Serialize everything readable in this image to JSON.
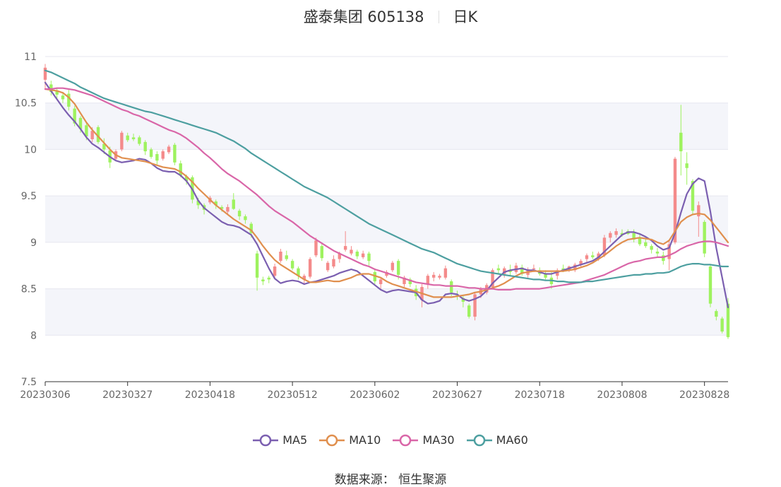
{
  "title": {
    "name": "盛泰集团 605138",
    "period": "日K"
  },
  "source": {
    "label": "数据来源：",
    "value": "恒生聚源"
  },
  "colors": {
    "up": "#f48b8b",
    "down": "#9ef25f",
    "MA5": "#7b5fb0",
    "MA10": "#e08f4e",
    "MA30": "#d966a8",
    "MA60": "#4d9fa0",
    "grid": "#e6e6ef",
    "band": "#f4f5fa"
  },
  "chart_data": {
    "type": "candlestick",
    "ylim": [
      7.5,
      11
    ],
    "yticks": [
      7.5,
      8,
      8.5,
      9,
      9.5,
      10,
      10.5,
      11
    ],
    "xtick_labels": [
      "20230306",
      "20230327",
      "20230418",
      "20230512",
      "20230602",
      "20230627",
      "20230718",
      "20230808",
      "20230828"
    ],
    "xtick_index": [
      0,
      14,
      28,
      42,
      56,
      70,
      84,
      98,
      112
    ],
    "ohlc": [
      [
        10.75,
        10.92,
        10.65,
        10.88
      ],
      [
        10.7,
        10.74,
        10.58,
        10.62
      ],
      [
        10.63,
        10.66,
        10.55,
        10.59
      ],
      [
        10.58,
        10.62,
        10.5,
        10.54
      ],
      [
        10.6,
        10.64,
        10.42,
        10.46
      ],
      [
        10.44,
        10.47,
        10.25,
        10.28
      ],
      [
        10.34,
        10.36,
        10.18,
        10.22
      ],
      [
        10.26,
        10.28,
        10.1,
        10.14
      ],
      [
        10.11,
        10.24,
        10.08,
        10.2
      ],
      [
        10.24,
        10.26,
        10.06,
        10.08
      ],
      [
        10.06,
        10.12,
        9.95,
        10.0
      ],
      [
        9.99,
        10.03,
        9.8,
        9.86
      ],
      [
        9.9,
        10.0,
        9.88,
        9.98
      ],
      [
        10.0,
        10.2,
        9.98,
        10.18
      ],
      [
        10.15,
        10.18,
        10.08,
        10.1
      ],
      [
        10.13,
        10.17,
        10.09,
        10.11
      ],
      [
        10.13,
        10.15,
        10.04,
        10.06
      ],
      [
        10.08,
        10.1,
        9.94,
        9.98
      ],
      [
        10.0,
        10.02,
        9.9,
        9.92
      ],
      [
        9.95,
        9.98,
        9.84,
        9.88
      ],
      [
        9.9,
        10.0,
        9.88,
        9.98
      ],
      [
        9.97,
        10.05,
        9.95,
        10.03
      ],
      [
        10.05,
        10.07,
        9.83,
        9.86
      ],
      [
        9.85,
        9.88,
        9.7,
        9.72
      ],
      [
        9.71,
        9.73,
        9.62,
        9.66
      ],
      [
        9.7,
        9.72,
        9.42,
        9.46
      ],
      [
        9.45,
        9.48,
        9.36,
        9.4
      ],
      [
        9.4,
        9.42,
        9.3,
        9.35
      ],
      [
        9.43,
        9.5,
        9.41,
        9.48
      ],
      [
        9.44,
        9.46,
        9.36,
        9.4
      ],
      [
        9.38,
        9.4,
        9.33,
        9.36
      ],
      [
        9.33,
        9.41,
        9.3,
        9.38
      ],
      [
        9.46,
        9.53,
        9.35,
        9.36
      ],
      [
        9.34,
        9.36,
        9.24,
        9.28
      ],
      [
        9.28,
        9.3,
        9.2,
        9.24
      ],
      [
        9.2,
        9.22,
        9.05,
        9.1
      ],
      [
        8.88,
        8.91,
        8.48,
        8.62
      ],
      [
        8.6,
        8.63,
        8.54,
        8.58
      ],
      [
        8.62,
        8.64,
        8.56,
        8.6
      ],
      [
        8.64,
        8.77,
        8.62,
        8.74
      ],
      [
        8.8,
        8.93,
        8.78,
        8.9
      ],
      [
        8.86,
        8.91,
        8.8,
        8.82
      ],
      [
        8.8,
        8.82,
        8.7,
        8.72
      ],
      [
        8.72,
        8.74,
        8.6,
        8.64
      ],
      [
        8.6,
        8.66,
        8.55,
        8.64
      ],
      [
        8.63,
        8.84,
        8.61,
        8.82
      ],
      [
        8.86,
        9.05,
        8.84,
        9.02
      ],
      [
        8.96,
        8.99,
        8.8,
        8.83
      ],
      [
        8.7,
        8.8,
        8.68,
        8.78
      ],
      [
        8.74,
        8.86,
        8.72,
        8.82
      ],
      [
        8.82,
        8.9,
        8.78,
        8.88
      ],
      [
        8.92,
        9.12,
        8.9,
        8.96
      ],
      [
        8.88,
        8.96,
        8.86,
        8.92
      ],
      [
        8.9,
        8.92,
        8.82,
        8.85
      ],
      [
        8.84,
        8.91,
        8.82,
        8.88
      ],
      [
        8.88,
        8.9,
        8.75,
        8.8
      ],
      [
        8.68,
        8.72,
        8.55,
        8.58
      ],
      [
        8.55,
        8.62,
        8.5,
        8.6
      ],
      [
        8.64,
        8.7,
        8.62,
        8.68
      ],
      [
        8.7,
        8.8,
        8.68,
        8.78
      ],
      [
        8.8,
        8.82,
        8.6,
        8.65
      ],
      [
        8.55,
        8.64,
        8.52,
        8.62
      ],
      [
        8.6,
        8.62,
        8.52,
        8.55
      ],
      [
        8.5,
        8.54,
        8.38,
        8.42
      ],
      [
        8.38,
        8.55,
        8.3,
        8.52
      ],
      [
        8.55,
        8.66,
        8.5,
        8.64
      ],
      [
        8.62,
        8.68,
        8.58,
        8.65
      ],
      [
        8.62,
        8.66,
        8.6,
        8.64
      ],
      [
        8.62,
        8.75,
        8.6,
        8.72
      ],
      [
        8.58,
        8.6,
        8.42,
        8.46
      ],
      [
        8.43,
        8.48,
        8.38,
        8.42
      ],
      [
        8.4,
        8.42,
        8.3,
        8.36
      ],
      [
        8.32,
        8.34,
        8.18,
        8.2
      ],
      [
        8.2,
        8.46,
        8.16,
        8.44
      ],
      [
        8.44,
        8.52,
        8.4,
        8.5
      ],
      [
        8.46,
        8.56,
        8.44,
        8.54
      ],
      [
        8.52,
        8.72,
        8.5,
        8.7
      ],
      [
        8.72,
        8.76,
        8.66,
        8.7
      ],
      [
        8.66,
        8.74,
        8.62,
        8.72
      ],
      [
        8.7,
        8.76,
        8.64,
        8.68
      ],
      [
        8.68,
        8.78,
        8.66,
        8.75
      ],
      [
        8.73,
        8.76,
        8.64,
        8.66
      ],
      [
        8.65,
        8.73,
        8.62,
        8.71
      ],
      [
        8.71,
        8.76,
        8.68,
        8.72
      ],
      [
        8.7,
        8.73,
        8.64,
        8.66
      ],
      [
        8.66,
        8.7,
        8.6,
        8.62
      ],
      [
        8.62,
        8.68,
        8.5,
        8.55
      ],
      [
        8.64,
        8.72,
        8.6,
        8.7
      ],
      [
        8.72,
        8.76,
        8.68,
        8.69
      ],
      [
        8.7,
        8.75,
        8.68,
        8.74
      ],
      [
        8.7,
        8.78,
        8.68,
        8.76
      ],
      [
        8.76,
        8.82,
        8.74,
        8.8
      ],
      [
        8.82,
        8.88,
        8.78,
        8.86
      ],
      [
        8.86,
        8.9,
        8.82,
        8.84
      ],
      [
        8.82,
        8.9,
        8.8,
        8.88
      ],
      [
        8.86,
        9.08,
        8.84,
        9.05
      ],
      [
        9.05,
        9.12,
        9.0,
        9.1
      ],
      [
        9.08,
        9.15,
        9.05,
        9.12
      ],
      [
        9.1,
        9.14,
        9.06,
        9.08
      ],
      [
        9.12,
        9.14,
        9.08,
        9.09
      ],
      [
        9.1,
        9.14,
        9.0,
        9.03
      ],
      [
        9.05,
        9.1,
        8.96,
        8.98
      ],
      [
        9.0,
        9.04,
        8.94,
        8.96
      ],
      [
        8.96,
        8.98,
        8.88,
        8.92
      ],
      [
        8.9,
        8.94,
        8.84,
        8.88
      ],
      [
        8.86,
        8.9,
        8.76,
        8.8
      ],
      [
        8.82,
        9.02,
        8.7,
        8.98
      ],
      [
        9.0,
        9.92,
        8.98,
        9.9
      ],
      [
        10.18,
        10.48,
        9.72,
        9.98
      ],
      [
        9.85,
        9.97,
        9.62,
        9.8
      ],
      [
        9.66,
        9.68,
        9.3,
        9.34
      ],
      [
        9.28,
        9.44,
        9.06,
        9.4
      ],
      [
        9.22,
        9.24,
        8.84,
        8.88
      ],
      [
        8.74,
        8.76,
        8.3,
        8.34
      ],
      [
        8.26,
        8.28,
        8.16,
        8.2
      ],
      [
        8.18,
        8.2,
        8.02,
        8.04
      ],
      [
        8.34,
        8.4,
        7.96,
        7.98
      ]
    ],
    "series": [
      {
        "name": "MA5",
        "values": [
          10.72,
          10.63,
          10.54,
          10.45,
          10.37,
          10.3,
          10.22,
          10.13,
          10.06,
          10.02,
          9.97,
          9.92,
          9.88,
          9.86,
          9.87,
          9.88,
          9.9,
          9.89,
          9.85,
          9.8,
          9.77,
          9.76,
          9.76,
          9.72,
          9.66,
          9.57,
          9.45,
          9.37,
          9.32,
          9.27,
          9.22,
          9.19,
          9.18,
          9.16,
          9.12,
          9.08,
          8.98,
          8.85,
          8.72,
          8.61,
          8.56,
          8.58,
          8.59,
          8.58,
          8.55,
          8.57,
          8.58,
          8.6,
          8.62,
          8.64,
          8.67,
          8.69,
          8.71,
          8.69,
          8.64,
          8.59,
          8.54,
          8.49,
          8.46,
          8.48,
          8.49,
          8.48,
          8.47,
          8.46,
          8.38,
          8.34,
          8.35,
          8.37,
          8.44,
          8.45,
          8.44,
          8.39,
          8.37,
          8.39,
          8.42,
          8.48,
          8.56,
          8.62,
          8.68,
          8.7,
          8.71,
          8.72,
          8.7,
          8.7,
          8.68,
          8.66,
          8.66,
          8.68,
          8.7,
          8.72,
          8.74,
          8.76,
          8.78,
          8.8,
          8.84,
          8.9,
          8.96,
          9.02,
          9.08,
          9.11,
          9.11,
          9.09,
          9.06,
          9.02,
          8.96,
          8.92,
          8.94,
          9.1,
          9.32,
          9.52,
          9.63,
          9.69,
          9.66,
          9.33,
          8.94,
          8.62,
          8.3
        ]
      },
      {
        "name": "MA10",
        "values": [
          10.65,
          10.64,
          10.63,
          10.61,
          10.56,
          10.49,
          10.39,
          10.29,
          10.21,
          10.14,
          10.07,
          10.0,
          9.94,
          9.91,
          9.9,
          9.89,
          9.88,
          9.87,
          9.85,
          9.83,
          9.81,
          9.8,
          9.79,
          9.76,
          9.71,
          9.65,
          9.58,
          9.52,
          9.46,
          9.4,
          9.35,
          9.3,
          9.25,
          9.21,
          9.17,
          9.13,
          9.05,
          8.96,
          8.88,
          8.81,
          8.76,
          8.72,
          8.68,
          8.64,
          8.6,
          8.57,
          8.57,
          8.58,
          8.59,
          8.58,
          8.58,
          8.6,
          8.62,
          8.65,
          8.66,
          8.66,
          8.64,
          8.62,
          8.58,
          8.55,
          8.53,
          8.51,
          8.49,
          8.47,
          8.45,
          8.43,
          8.41,
          8.41,
          8.41,
          8.41,
          8.42,
          8.43,
          8.44,
          8.46,
          8.47,
          8.49,
          8.51,
          8.53,
          8.56,
          8.6,
          8.64,
          8.67,
          8.68,
          8.69,
          8.69,
          8.69,
          8.69,
          8.69,
          8.69,
          8.7,
          8.71,
          8.73,
          8.75,
          8.78,
          8.82,
          8.86,
          8.91,
          8.96,
          9.0,
          9.03,
          9.04,
          9.05,
          9.04,
          9.03,
          9.0,
          8.98,
          9.02,
          9.12,
          9.22,
          9.27,
          9.3,
          9.31,
          9.3,
          9.24,
          9.16,
          9.08,
          9.0
        ]
      },
      {
        "name": "MA30",
        "values": [
          10.65,
          10.65,
          10.66,
          10.66,
          10.65,
          10.64,
          10.62,
          10.6,
          10.58,
          10.55,
          10.52,
          10.49,
          10.46,
          10.43,
          10.41,
          10.38,
          10.36,
          10.33,
          10.3,
          10.27,
          10.24,
          10.21,
          10.19,
          10.16,
          10.12,
          10.07,
          10.02,
          9.96,
          9.91,
          9.85,
          9.79,
          9.74,
          9.7,
          9.66,
          9.61,
          9.56,
          9.51,
          9.45,
          9.39,
          9.34,
          9.3,
          9.26,
          9.22,
          9.17,
          9.12,
          9.07,
          9.03,
          8.99,
          8.95,
          8.91,
          8.88,
          8.85,
          8.82,
          8.79,
          8.76,
          8.74,
          8.71,
          8.69,
          8.67,
          8.65,
          8.63,
          8.61,
          8.59,
          8.57,
          8.56,
          8.55,
          8.54,
          8.54,
          8.53,
          8.53,
          8.53,
          8.52,
          8.51,
          8.51,
          8.5,
          8.5,
          8.5,
          8.49,
          8.49,
          8.49,
          8.5,
          8.5,
          8.5,
          8.5,
          8.5,
          8.51,
          8.52,
          8.53,
          8.54,
          8.55,
          8.56,
          8.57,
          8.59,
          8.61,
          8.63,
          8.65,
          8.68,
          8.71,
          8.74,
          8.77,
          8.79,
          8.8,
          8.82,
          8.83,
          8.84,
          8.84,
          8.86,
          8.89,
          8.93,
          8.96,
          8.98,
          9.0,
          9.01,
          9.01,
          9.0,
          8.98,
          8.96
        ]
      },
      {
        "name": "MA60",
        "values": [
          10.85,
          10.83,
          10.8,
          10.77,
          10.74,
          10.71,
          10.67,
          10.64,
          10.61,
          10.58,
          10.55,
          10.53,
          10.51,
          10.49,
          10.47,
          10.45,
          10.43,
          10.41,
          10.4,
          10.38,
          10.36,
          10.34,
          10.32,
          10.3,
          10.28,
          10.26,
          10.24,
          10.22,
          10.2,
          10.18,
          10.15,
          10.12,
          10.09,
          10.05,
          10.01,
          9.96,
          9.92,
          9.88,
          9.84,
          9.8,
          9.76,
          9.72,
          9.68,
          9.64,
          9.6,
          9.57,
          9.54,
          9.51,
          9.48,
          9.44,
          9.4,
          9.36,
          9.32,
          9.28,
          9.24,
          9.2,
          9.17,
          9.14,
          9.11,
          9.08,
          9.05,
          9.02,
          8.99,
          8.96,
          8.93,
          8.91,
          8.89,
          8.86,
          8.83,
          8.8,
          8.77,
          8.75,
          8.73,
          8.71,
          8.69,
          8.68,
          8.67,
          8.66,
          8.65,
          8.64,
          8.63,
          8.62,
          8.61,
          8.6,
          8.6,
          8.59,
          8.59,
          8.58,
          8.58,
          8.57,
          8.57,
          8.57,
          8.58,
          8.58,
          8.59,
          8.6,
          8.61,
          8.62,
          8.63,
          8.64,
          8.65,
          8.65,
          8.66,
          8.66,
          8.67,
          8.67,
          8.68,
          8.71,
          8.74,
          8.76,
          8.77,
          8.77,
          8.76,
          8.76,
          8.75,
          8.74,
          8.74
        ]
      }
    ]
  }
}
